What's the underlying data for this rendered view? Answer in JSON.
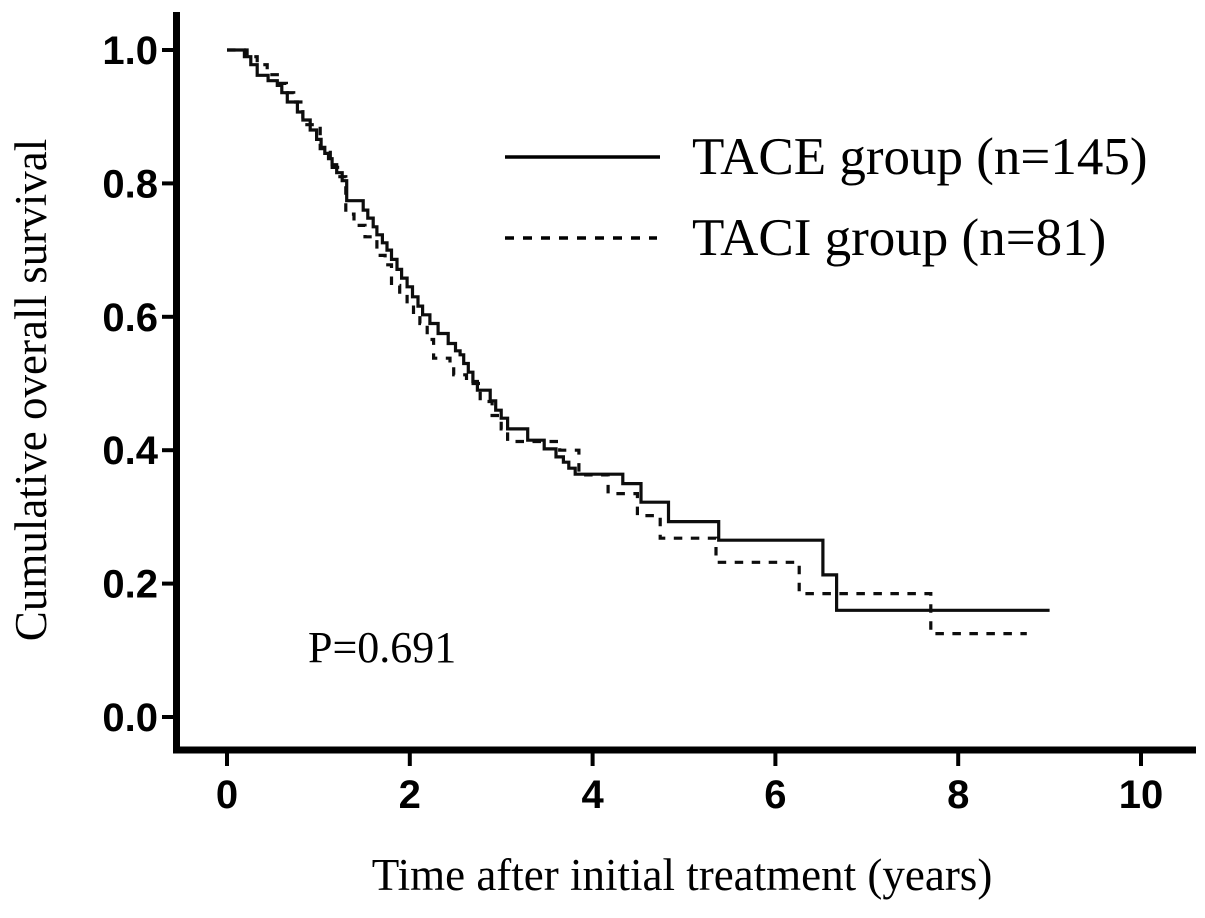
{
  "figure": {
    "background_color": "#ffffff",
    "ink_color": "#000000"
  },
  "chart_data": {
    "type": "line",
    "subtype": "kaplan_meier_step",
    "title": "",
    "xlabel": "Time after initial treatment (years)",
    "ylabel": "Cumulative overall survival",
    "xlim": [
      0,
      10
    ],
    "ylim": [
      0.0,
      1.0
    ],
    "grid": false,
    "legend_position": "upper-right-inside",
    "x_ticks": [
      {
        "value": 0,
        "label": "0"
      },
      {
        "value": 2,
        "label": "2"
      },
      {
        "value": 4,
        "label": "4"
      },
      {
        "value": 6,
        "label": "6"
      },
      {
        "value": 8,
        "label": "8"
      },
      {
        "value": 10,
        "label": "10"
      }
    ],
    "y_ticks": [
      {
        "value": 0.0,
        "label": "0.0"
      },
      {
        "value": 0.2,
        "label": "0.2"
      },
      {
        "value": 0.4,
        "label": "0.4"
      },
      {
        "value": 0.6,
        "label": "0.6"
      },
      {
        "value": 0.8,
        "label": "0.8"
      },
      {
        "value": 1.0,
        "label": "1.0"
      }
    ],
    "annotation": {
      "text": "P=0.691",
      "x_years": 0.9,
      "y_survival": 0.08
    },
    "series": [
      {
        "name": "TACE group (n=145)",
        "group": "TACE",
        "n": 145,
        "line_style": "solid",
        "color": "#0d0d0d",
        "points": [
          [
            0.0,
            1.0
          ],
          [
            0.19,
            0.99
          ],
          [
            0.26,
            0.978
          ],
          [
            0.33,
            0.962
          ],
          [
            0.45,
            0.954
          ],
          [
            0.55,
            0.947
          ],
          [
            0.6,
            0.936
          ],
          [
            0.66,
            0.922
          ],
          [
            0.77,
            0.907
          ],
          [
            0.83,
            0.895
          ],
          [
            0.91,
            0.88
          ],
          [
            0.98,
            0.866
          ],
          [
            1.03,
            0.854
          ],
          [
            1.07,
            0.845
          ],
          [
            1.11,
            0.837
          ],
          [
            1.15,
            0.828
          ],
          [
            1.2,
            0.816
          ],
          [
            1.26,
            0.804
          ],
          [
            1.31,
            0.774
          ],
          [
            1.49,
            0.76
          ],
          [
            1.54,
            0.748
          ],
          [
            1.6,
            0.735
          ],
          [
            1.64,
            0.723
          ],
          [
            1.7,
            0.711
          ],
          [
            1.75,
            0.7
          ],
          [
            1.8,
            0.686
          ],
          [
            1.86,
            0.671
          ],
          [
            1.91,
            0.658
          ],
          [
            1.97,
            0.645
          ],
          [
            2.03,
            0.63
          ],
          [
            2.09,
            0.616
          ],
          [
            2.14,
            0.603
          ],
          [
            2.22,
            0.59
          ],
          [
            2.31,
            0.575
          ],
          [
            2.42,
            0.56
          ],
          [
            2.5,
            0.549
          ],
          [
            2.55,
            0.543
          ],
          [
            2.59,
            0.53
          ],
          [
            2.64,
            0.517
          ],
          [
            2.69,
            0.503
          ],
          [
            2.74,
            0.49
          ],
          [
            2.88,
            0.474
          ],
          [
            2.94,
            0.46
          ],
          [
            3.0,
            0.448
          ],
          [
            3.07,
            0.432
          ],
          [
            3.29,
            0.415
          ],
          [
            3.47,
            0.402
          ],
          [
            3.6,
            0.39
          ],
          [
            3.68,
            0.382
          ],
          [
            3.74,
            0.373
          ],
          [
            3.81,
            0.364
          ],
          [
            4.33,
            0.35
          ],
          [
            4.53,
            0.322
          ],
          [
            4.83,
            0.293
          ],
          [
            5.38,
            0.265
          ],
          [
            6.52,
            0.213
          ],
          [
            6.67,
            0.16
          ],
          [
            9.0,
            0.16
          ]
        ]
      },
      {
        "name": "TACI group (n=81)",
        "group": "TACI",
        "n": 81,
        "line_style": "dashed",
        "color": "#0d0d0d",
        "points": [
          [
            0.0,
            1.0
          ],
          [
            0.22,
            0.99
          ],
          [
            0.33,
            0.978
          ],
          [
            0.44,
            0.963
          ],
          [
            0.55,
            0.95
          ],
          [
            0.65,
            0.936
          ],
          [
            0.73,
            0.922
          ],
          [
            0.83,
            0.888
          ],
          [
            1.02,
            0.852
          ],
          [
            1.13,
            0.824
          ],
          [
            1.21,
            0.81
          ],
          [
            1.3,
            0.754
          ],
          [
            1.39,
            0.737
          ],
          [
            1.51,
            0.72
          ],
          [
            1.64,
            0.692
          ],
          [
            1.73,
            0.678
          ],
          [
            1.8,
            0.647
          ],
          [
            1.89,
            0.634
          ],
          [
            1.97,
            0.62
          ],
          [
            2.04,
            0.602
          ],
          [
            2.11,
            0.59
          ],
          [
            2.19,
            0.566
          ],
          [
            2.26,
            0.538
          ],
          [
            2.44,
            0.527
          ],
          [
            2.48,
            0.513
          ],
          [
            2.62,
            0.5
          ],
          [
            2.77,
            0.473
          ],
          [
            2.9,
            0.452
          ],
          [
            3.0,
            0.432
          ],
          [
            3.07,
            0.413
          ],
          [
            3.64,
            0.4
          ],
          [
            3.85,
            0.363
          ],
          [
            4.17,
            0.335
          ],
          [
            4.49,
            0.302
          ],
          [
            4.74,
            0.268
          ],
          [
            5.35,
            0.232
          ],
          [
            6.26,
            0.185
          ],
          [
            7.7,
            0.125
          ],
          [
            8.75,
            0.125
          ]
        ]
      }
    ]
  }
}
